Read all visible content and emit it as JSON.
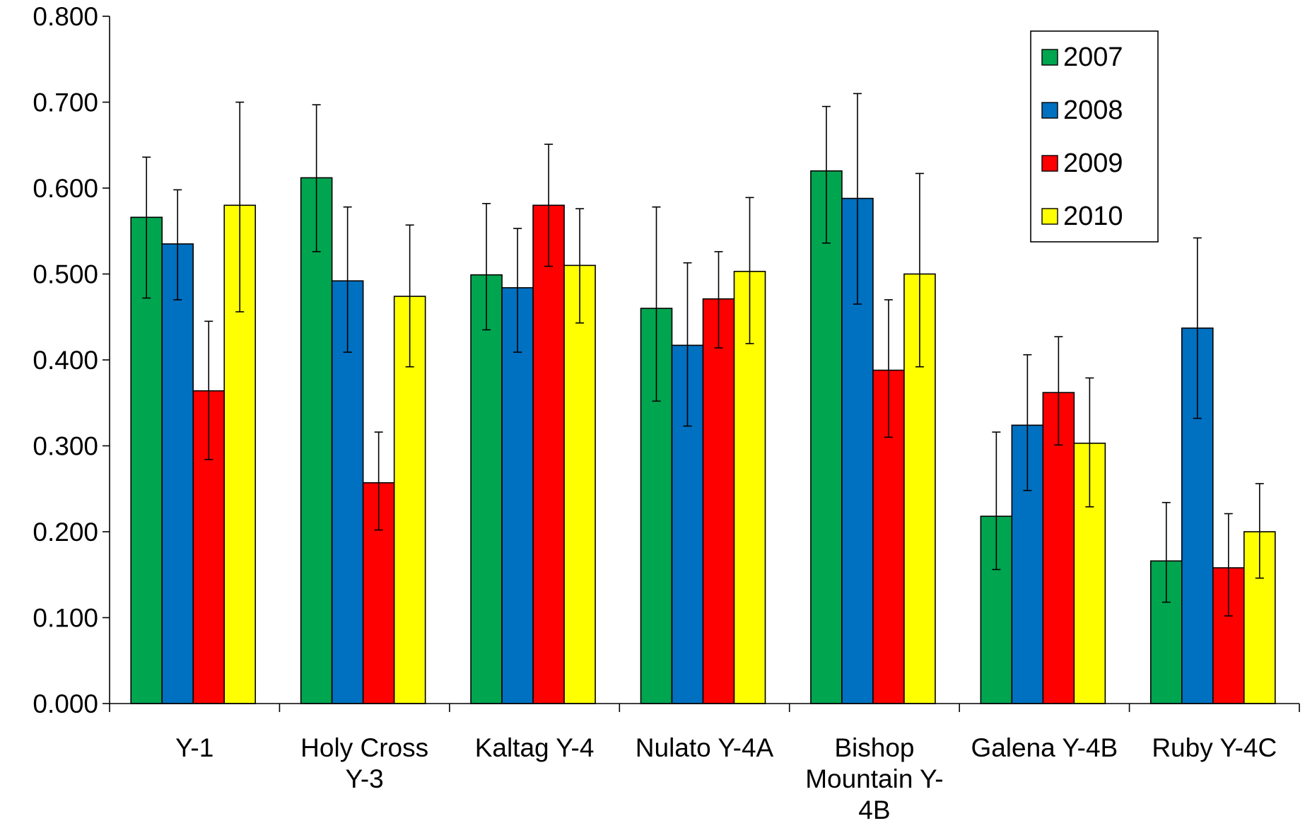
{
  "chart_data": {
    "type": "bar",
    "title": "",
    "xlabel": "",
    "ylabel": "",
    "ylim": [
      0,
      0.8
    ],
    "yticks": [
      "0.000",
      "0.100",
      "0.200",
      "0.300",
      "0.400",
      "0.500",
      "0.600",
      "0.700",
      "0.800"
    ],
    "grid": false,
    "legend_position": "top-right",
    "categories": [
      [
        "Y-1"
      ],
      [
        "Holy Cross",
        "Y-3"
      ],
      [
        "Kaltag Y-4"
      ],
      [
        "Nulato Y-4A"
      ],
      [
        "Bishop",
        "Mountain Y-",
        "4B"
      ],
      [
        "Galena Y-4B"
      ],
      [
        "Ruby Y-4C"
      ]
    ],
    "series": [
      {
        "name": "2007",
        "color": "#00A550",
        "values": [
          0.566,
          0.612,
          0.499,
          0.46,
          0.62,
          0.218,
          0.166
        ],
        "error_low": [
          0.472,
          0.526,
          0.435,
          0.352,
          0.536,
          0.156,
          0.118
        ],
        "error_high": [
          0.636,
          0.697,
          0.582,
          0.578,
          0.695,
          0.316,
          0.234
        ]
      },
      {
        "name": "2008",
        "color": "#0070C0",
        "values": [
          0.535,
          0.492,
          0.484,
          0.417,
          0.588,
          0.324,
          0.437
        ],
        "error_low": [
          0.47,
          0.409,
          0.409,
          0.323,
          0.465,
          0.248,
          0.332
        ],
        "error_high": [
          0.598,
          0.578,
          0.553,
          0.513,
          0.71,
          0.406,
          0.542
        ]
      },
      {
        "name": "2009",
        "color": "#FF0000",
        "values": [
          0.364,
          0.257,
          0.58,
          0.471,
          0.388,
          0.362,
          0.158
        ],
        "error_low": [
          0.284,
          0.202,
          0.509,
          0.414,
          0.31,
          0.301,
          0.102
        ],
        "error_high": [
          0.445,
          0.316,
          0.651,
          0.526,
          0.47,
          0.427,
          0.221
        ]
      },
      {
        "name": "2010",
        "color": "#FFFF00",
        "values": [
          0.58,
          0.474,
          0.51,
          0.503,
          0.5,
          0.303,
          0.2
        ],
        "error_low": [
          0.456,
          0.392,
          0.443,
          0.419,
          0.392,
          0.229,
          0.146
        ],
        "error_high": [
          0.7,
          0.557,
          0.576,
          0.589,
          0.617,
          0.379,
          0.256
        ]
      }
    ]
  }
}
